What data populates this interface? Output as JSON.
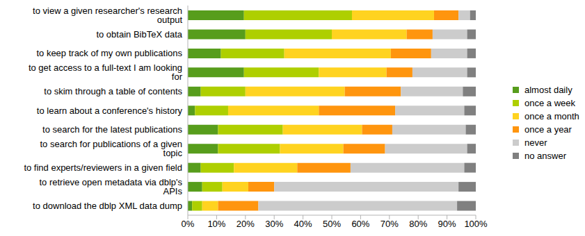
{
  "chart_data": {
    "type": "bar",
    "orientation": "horizontal",
    "stacked": true,
    "legend": "right",
    "grid": false,
    "categories": [
      "to view a given researcher's research output",
      "to obtain BibTeX data",
      "to keep track of my own publications",
      "to get access to a full-text I am looking for",
      "to skim through a table of contents",
      "to learn about a conference's history",
      "to search for the latest publications",
      "to search for publications of a given topic",
      "to find experts/reviewers in a given field",
      "to retrieve open metadata via dblp's APIs",
      "to download the dblp XML data dump"
    ],
    "xlim": [
      0,
      100
    ],
    "xticks": [
      {
        "value": 0,
        "label": "0%"
      },
      {
        "value": 10,
        "label": "10%"
      },
      {
        "value": 20,
        "label": "20%"
      },
      {
        "value": 30,
        "label": "30%"
      },
      {
        "value": 40,
        "label": "40%"
      },
      {
        "value": 50,
        "label": "50%"
      },
      {
        "value": 60,
        "label": "60%"
      },
      {
        "value": 70,
        "label": "70%"
      },
      {
        "value": 80,
        "label": "80%"
      },
      {
        "value": 90,
        "label": "90%"
      },
      {
        "value": 100,
        "label": "100%"
      }
    ],
    "series": [
      {
        "name": "almost daily",
        "color": "#579d1c",
        "values": [
          19.5,
          20,
          11.5,
          19.5,
          4.5,
          2.5,
          10.5,
          10.5,
          4.5,
          5,
          1.5
        ]
      },
      {
        "name": "once a week",
        "color": "#aecf00",
        "values": [
          37.5,
          30,
          22,
          26,
          15.5,
          11.5,
          22.5,
          21.5,
          11.5,
          7,
          3.5
        ]
      },
      {
        "name": "once a month",
        "color": "#ffd320",
        "values": [
          28.5,
          26,
          37,
          23.5,
          34.5,
          31.5,
          27.5,
          22,
          22,
          9,
          5.5
        ]
      },
      {
        "name": "once a year",
        "color": "#ff950e",
        "values": [
          8.5,
          9,
          14,
          9,
          19.5,
          26.5,
          10.5,
          14.5,
          18.5,
          9,
          14
        ]
      },
      {
        "name": "never",
        "color": "#cccccc",
        "values": [
          4,
          12,
          12.5,
          19,
          21.5,
          24,
          25.5,
          28.5,
          39.5,
          64,
          69
        ]
      },
      {
        "name": "no answer",
        "color": "#808080",
        "values": [
          2,
          3,
          3,
          3,
          4.5,
          4,
          3.5,
          3,
          4,
          6,
          6.5
        ]
      }
    ]
  }
}
